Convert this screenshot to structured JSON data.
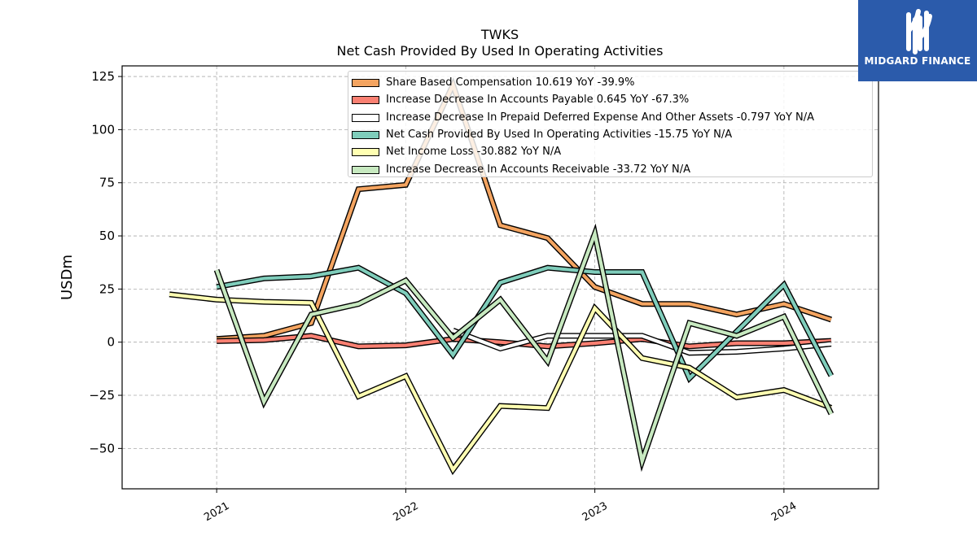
{
  "logo": {
    "text": "MIDGARD FINANCE",
    "icon": "midgard-logo-icon",
    "background": "#2b5bab"
  },
  "chart_data": {
    "type": "line",
    "title": "TWKS",
    "subtitle": "Net Cash Provided By Used In Operating Activities",
    "xlabel": "",
    "ylabel": "USDm",
    "x_ticks": [
      "2021",
      "2022",
      "2023",
      "2024"
    ],
    "y_ticks": [
      125,
      100,
      75,
      50,
      25,
      0,
      -25,
      -50
    ],
    "ylim": [
      -69,
      130
    ],
    "xlim": [
      "2020-07",
      "2024-07"
    ],
    "grid": true,
    "legend_position": "top-center",
    "series": [
      {
        "name": "Share Based Compensation",
        "legend": "Share Based Compensation  10.619 YoY -39.9%",
        "color": "#f4a460",
        "x": [
          "2021-01",
          "2021-04",
          "2021-07",
          "2021-10",
          "2022-01",
          "2022-04",
          "2022-07",
          "2022-10",
          "2023-01",
          "2023-04",
          "2023-07",
          "2023-10",
          "2024-01",
          "2024-04"
        ],
        "values": [
          1.5,
          3,
          9,
          72,
          74,
          121,
          55,
          49,
          26,
          18,
          18,
          13,
          18,
          10.6
        ]
      },
      {
        "name": "Increase Decrease In Accounts Payable",
        "legend": "Increase Decrease In Accounts Payable  0.645 YoY -67.3%",
        "color": "#fa8072",
        "x": [
          "2021-01",
          "2021-04",
          "2021-07",
          "2021-10",
          "2022-01",
          "2022-04",
          "2022-07",
          "2022-10",
          "2023-01",
          "2023-04",
          "2023-07",
          "2023-10",
          "2024-01",
          "2024-04"
        ],
        "values": [
          0.5,
          1,
          3,
          -2,
          -1.5,
          1.5,
          0,
          -2,
          -0.5,
          1.5,
          -2,
          -0.5,
          -0.5,
          0.6
        ]
      },
      {
        "name": "Increase Decrease In Prepaid Deferred Expense And Other Assets",
        "legend": "Increase Decrease In Prepaid Deferred Expense And Other Assets  -0.797 YoY N/A",
        "color": "#ffffff",
        "x": [
          "2022-04",
          "2022-07",
          "2022-10",
          "2023-01",
          "2023-04",
          "2023-07",
          "2023-10",
          "2024-01",
          "2024-04"
        ],
        "values": [
          5.5,
          -3,
          3,
          3,
          3,
          -5,
          -4.5,
          -3,
          -0.8
        ]
      },
      {
        "name": "Net Cash Provided By Used In Operating Activities",
        "legend": "Net Cash Provided By Used In Operating Activities  -15.75 YoY N/A",
        "color": "#7fcdbb",
        "x": [
          "2021-01",
          "2021-04",
          "2021-07",
          "2021-10",
          "2022-01",
          "2022-04",
          "2022-07",
          "2022-10",
          "2023-01",
          "2023-04",
          "2023-07",
          "2023-10",
          "2024-01",
          "2024-04"
        ],
        "values": [
          26,
          30,
          31,
          35,
          23,
          -6,
          28,
          35,
          33,
          33,
          -17,
          5,
          27,
          -15.75
        ]
      },
      {
        "name": "Net Income Loss",
        "legend": "Net Income Loss  -30.882 YoY N/A",
        "color": "#ffffb2",
        "x": [
          "2020-10",
          "2021-01",
          "2021-04",
          "2021-07",
          "2021-10",
          "2022-01",
          "2022-04",
          "2022-07",
          "2022-10",
          "2023-01",
          "2023-04",
          "2023-07",
          "2023-10",
          "2024-01",
          "2024-04"
        ],
        "values": [
          22.5,
          20,
          19,
          18.5,
          -25.5,
          -16,
          -60,
          -30,
          -31,
          16,
          -7.5,
          -12,
          -26,
          -22.5,
          -30.9
        ]
      },
      {
        "name": "Increase Decrease In Accounts Receivable",
        "legend": "Increase Decrease In Accounts Receivable  -33.72 YoY N/A",
        "color": "#c7e9c0",
        "x": [
          "2021-01",
          "2021-04",
          "2021-07",
          "2021-10",
          "2022-01",
          "2022-04",
          "2022-07",
          "2022-10",
          "2023-01",
          "2023-04",
          "2023-07",
          "2023-10",
          "2024-01",
          "2024-04"
        ],
        "values": [
          34,
          -28,
          13,
          18,
          29,
          2,
          20,
          -9,
          51,
          -56,
          9,
          3,
          12,
          -33.7
        ]
      }
    ]
  }
}
